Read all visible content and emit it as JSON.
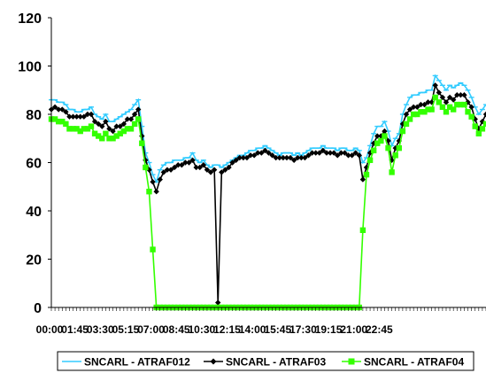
{
  "chart_data": {
    "type": "line",
    "title": "",
    "xlabel": "",
    "ylabel": "",
    "ylim": [
      0,
      120
    ],
    "yticks": [
      "0",
      "20",
      "40",
      "60",
      "80",
      "100",
      "120"
    ],
    "xtick_labels": [
      "00:00",
      "01:45",
      "03:30",
      "05:15",
      "07:00",
      "08:45",
      "10:30",
      "12:15",
      "14:00",
      "15:45",
      "17:30",
      "19:15",
      "21:00",
      "22:45"
    ],
    "x_start": "00:00",
    "x_step_minutes": 15,
    "grid": false,
    "legend_position": "bottom",
    "series": [
      {
        "name": "SNCARL - ATRAF012",
        "color": "#33CCFF",
        "marker": "dash",
        "values": [
          86,
          86,
          85,
          85,
          84,
          82,
          82,
          81,
          81,
          82,
          82,
          83,
          80,
          79,
          78,
          80,
          77,
          77,
          78,
          79,
          80,
          81,
          82,
          84,
          86,
          75,
          64,
          60,
          55,
          52,
          57,
          59,
          60,
          60,
          61,
          61,
          61,
          62,
          62,
          64,
          61,
          60,
          61,
          59,
          58,
          59,
          59,
          58,
          59,
          60,
          61,
          62,
          63,
          63,
          64,
          65,
          65,
          66,
          66,
          67,
          66,
          65,
          64,
          63,
          64,
          64,
          64,
          63,
          64,
          63,
          64,
          65,
          66,
          66,
          66,
          67,
          66,
          66,
          66,
          65,
          66,
          66,
          65,
          65,
          66,
          65,
          60,
          62,
          67,
          72,
          75,
          75,
          77,
          73,
          67,
          70,
          72,
          80,
          84,
          87,
          88,
          88,
          89,
          89,
          90,
          90,
          96,
          94,
          92,
          90,
          92,
          91,
          92,
          93,
          92,
          90,
          87,
          83,
          80,
          82,
          84
        ]
      },
      {
        "name": "SNCARL - ATRAF03",
        "color": "#000000",
        "marker": "diamond",
        "values": [
          82,
          83,
          82,
          82,
          81,
          79,
          79,
          79,
          79,
          79,
          80,
          80,
          77,
          76,
          75,
          77,
          74,
          73,
          75,
          75,
          76,
          78,
          78,
          80,
          82,
          71,
          61,
          57,
          52,
          48,
          53,
          56,
          57,
          57,
          58,
          59,
          59,
          60,
          60,
          61,
          58,
          58,
          59,
          57,
          56,
          57,
          2,
          56,
          57,
          58,
          60,
          61,
          62,
          62,
          62,
          63,
          63,
          64,
          64,
          65,
          64,
          63,
          62,
          62,
          62,
          62,
          62,
          61,
          62,
          62,
          62,
          63,
          64,
          64,
          64,
          65,
          64,
          64,
          64,
          63,
          64,
          64,
          63,
          63,
          64,
          63,
          53,
          58,
          64,
          68,
          71,
          71,
          73,
          69,
          61,
          66,
          69,
          76,
          80,
          82,
          83,
          83,
          84,
          84,
          85,
          85,
          92,
          89,
          87,
          85,
          87,
          86,
          88,
          88,
          88,
          85,
          83,
          78,
          74,
          77,
          80
        ]
      },
      {
        "name": "SNCARL - ATRAF04",
        "color": "#33FF00",
        "marker": "square",
        "values": [
          78,
          78,
          77,
          77,
          76,
          74,
          74,
          74,
          73,
          74,
          74,
          75,
          72,
          71,
          70,
          72,
          70,
          70,
          71,
          72,
          73,
          74,
          74,
          76,
          78,
          68,
          58,
          48,
          24,
          0,
          0,
          0,
          0,
          0,
          0,
          0,
          0,
          0,
          0,
          0,
          0,
          0,
          0,
          0,
          0,
          0,
          0,
          0,
          0,
          0,
          0,
          0,
          0,
          0,
          0,
          0,
          0,
          0,
          0,
          0,
          0,
          0,
          0,
          0,
          0,
          0,
          0,
          0,
          0,
          0,
          0,
          0,
          0,
          0,
          0,
          0,
          0,
          0,
          0,
          0,
          0,
          0,
          0,
          0,
          0,
          0,
          32,
          55,
          61,
          65,
          68,
          69,
          71,
          66,
          56,
          63,
          66,
          73,
          76,
          78,
          80,
          80,
          81,
          81,
          82,
          82,
          87,
          85,
          83,
          81,
          83,
          82,
          84,
          84,
          84,
          81,
          79,
          75,
          72,
          74,
          76
        ]
      }
    ]
  }
}
